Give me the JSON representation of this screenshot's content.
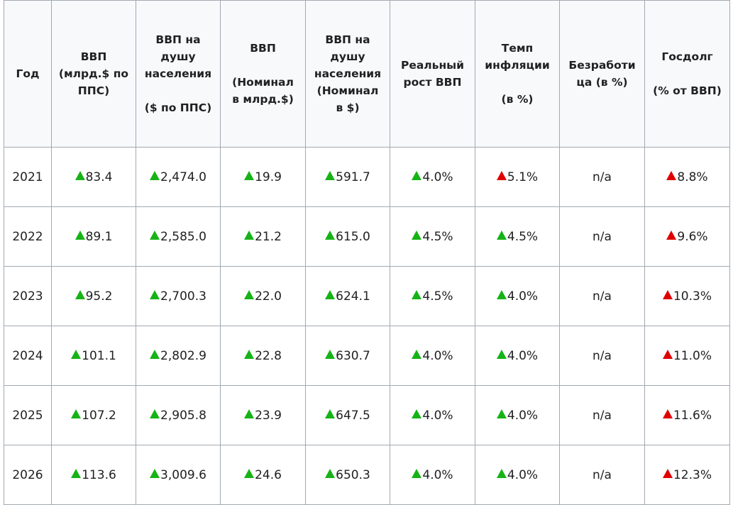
{
  "columns": [
    {
      "lines": [
        "ВВП",
        "(млрд.$ по",
        "ППС)"
      ]
    },
    {
      "lines": [
        "ВВП на",
        "душу",
        "населения",
        "",
        "($ по ППС)"
      ]
    },
    {
      "lines": [
        "ВВП",
        "",
        "(Номинал",
        "в млрд.$)"
      ]
    },
    {
      "lines": [
        "ВВП на",
        "душу",
        "населения",
        "(Номинал",
        "в $)"
      ]
    },
    {
      "lines": [
        "Реальный",
        "рост ВВП"
      ]
    },
    {
      "lines": [
        "Темп",
        "инфляции",
        "",
        "(в %)"
      ]
    },
    {
      "lines": [
        "Безработи",
        "ца (в %)"
      ]
    },
    {
      "lines": [
        "Госдолг",
        "",
        "(% от ВВП)"
      ]
    }
  ],
  "year_header": "Год",
  "rows": [
    {
      "year": "2021",
      "cells": [
        {
          "v": "83.4",
          "t": "up"
        },
        {
          "v": "2,474.0",
          "t": "up"
        },
        {
          "v": "19.9",
          "t": "up"
        },
        {
          "v": "591.7",
          "t": "up"
        },
        {
          "v": "4.0%",
          "t": "up"
        },
        {
          "v": "5.1%",
          "t": "red"
        },
        {
          "v": "n/a",
          "t": "none"
        },
        {
          "v": "8.8%",
          "t": "red"
        }
      ]
    },
    {
      "year": "2022",
      "cells": [
        {
          "v": "89.1",
          "t": "up"
        },
        {
          "v": "2,585.0",
          "t": "up"
        },
        {
          "v": "21.2",
          "t": "up"
        },
        {
          "v": "615.0",
          "t": "up"
        },
        {
          "v": "4.5%",
          "t": "up"
        },
        {
          "v": "4.5%",
          "t": "up"
        },
        {
          "v": "n/a",
          "t": "none"
        },
        {
          "v": "9.6%",
          "t": "red"
        }
      ]
    },
    {
      "year": "2023",
      "cells": [
        {
          "v": "95.2",
          "t": "up"
        },
        {
          "v": "2,700.3",
          "t": "up"
        },
        {
          "v": "22.0",
          "t": "up"
        },
        {
          "v": "624.1",
          "t": "up"
        },
        {
          "v": "4.5%",
          "t": "up"
        },
        {
          "v": "4.0%",
          "t": "up"
        },
        {
          "v": "n/a",
          "t": "none"
        },
        {
          "v": "10.3%",
          "t": "red"
        }
      ]
    },
    {
      "year": "2024",
      "cells": [
        {
          "v": "101.1",
          "t": "up"
        },
        {
          "v": "2,802.9",
          "t": "up"
        },
        {
          "v": "22.8",
          "t": "up"
        },
        {
          "v": "630.7",
          "t": "up"
        },
        {
          "v": "4.0%",
          "t": "up"
        },
        {
          "v": "4.0%",
          "t": "up"
        },
        {
          "v": "n/a",
          "t": "none"
        },
        {
          "v": "11.0%",
          "t": "red"
        }
      ]
    },
    {
      "year": "2025",
      "cells": [
        {
          "v": "107.2",
          "t": "up"
        },
        {
          "v": "2,905.8",
          "t": "up"
        },
        {
          "v": "23.9",
          "t": "up"
        },
        {
          "v": "647.5",
          "t": "up"
        },
        {
          "v": "4.0%",
          "t": "up"
        },
        {
          "v": "4.0%",
          "t": "up"
        },
        {
          "v": "n/a",
          "t": "none"
        },
        {
          "v": "11.6%",
          "t": "red"
        }
      ]
    },
    {
      "year": "2026",
      "cells": [
        {
          "v": "113.6",
          "t": "up"
        },
        {
          "v": "3,009.6",
          "t": "up"
        },
        {
          "v": "24.6",
          "t": "up"
        },
        {
          "v": "650.3",
          "t": "up"
        },
        {
          "v": "4.0%",
          "t": "up"
        },
        {
          "v": "4.0%",
          "t": "up"
        },
        {
          "v": "n/a",
          "t": "none"
        },
        {
          "v": "12.3%",
          "t": "red"
        }
      ]
    }
  ],
  "colors": {
    "up": "#16b316",
    "red": "#e00000",
    "header_bg": "#f8f9fa",
    "border": "#a2a9b1"
  },
  "indicator_icons": {
    "up": "green-up-triangle-icon",
    "red": "red-up-triangle-icon"
  }
}
